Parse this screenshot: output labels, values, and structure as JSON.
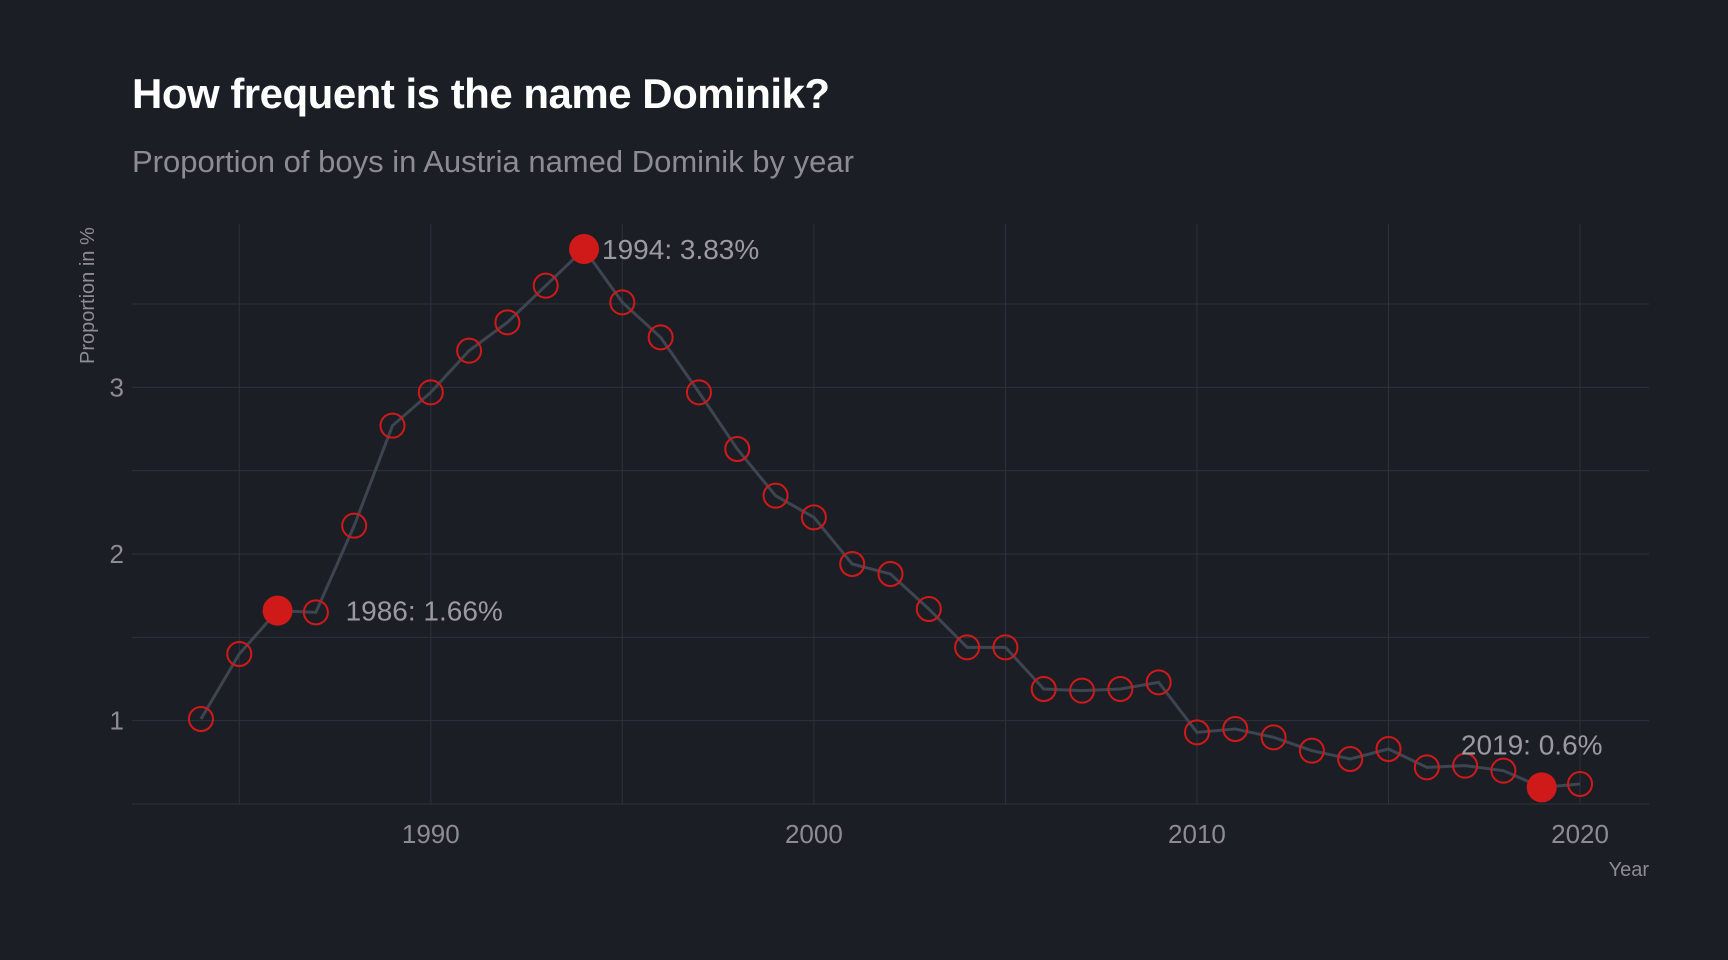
{
  "chart_data": {
    "type": "line",
    "title": "How frequent is the name Dominik?",
    "subtitle": "Proportion of boys in Austria named Dominik by year",
    "xlabel": "Year",
    "ylabel": "Proportion in %",
    "xlim": [
      1982.2,
      2021.8
    ],
    "ylim": [
      0.5,
      3.98
    ],
    "x_ticks": [
      1990,
      2000,
      2010,
      2020
    ],
    "y_ticks": [
      1,
      2,
      3
    ],
    "grid": true,
    "colors": {
      "background": "#1c1e25",
      "line": "#3d4550",
      "point": "#d01a1a",
      "grid": "#2f323a"
    },
    "x": [
      1984,
      1985,
      1986,
      1987,
      1988,
      1989,
      1990,
      1991,
      1992,
      1993,
      1994,
      1995,
      1996,
      1997,
      1998,
      1999,
      2000,
      2001,
      2002,
      2003,
      2004,
      2005,
      2006,
      2007,
      2008,
      2009,
      2010,
      2011,
      2012,
      2013,
      2014,
      2015,
      2016,
      2017,
      2018,
      2019,
      2020
    ],
    "values": [
      1.01,
      1.4,
      1.66,
      1.65,
      2.17,
      2.77,
      2.97,
      3.22,
      3.39,
      3.61,
      3.83,
      3.51,
      3.3,
      2.97,
      2.63,
      2.35,
      2.22,
      1.94,
      1.88,
      1.67,
      1.44,
      1.44,
      1.19,
      1.18,
      1.19,
      1.23,
      0.93,
      0.95,
      0.9,
      0.82,
      0.77,
      0.83,
      0.72,
      0.73,
      0.7,
      0.6,
      0.62
    ],
    "annotations": [
      {
        "year": 1986,
        "value": 1.66,
        "label": "1986: 1.66%"
      },
      {
        "year": 1994,
        "value": 3.83,
        "label": "1994: 3.83%"
      },
      {
        "year": 2019,
        "value": 0.6,
        "label": "2019: 0.6%"
      }
    ]
  }
}
